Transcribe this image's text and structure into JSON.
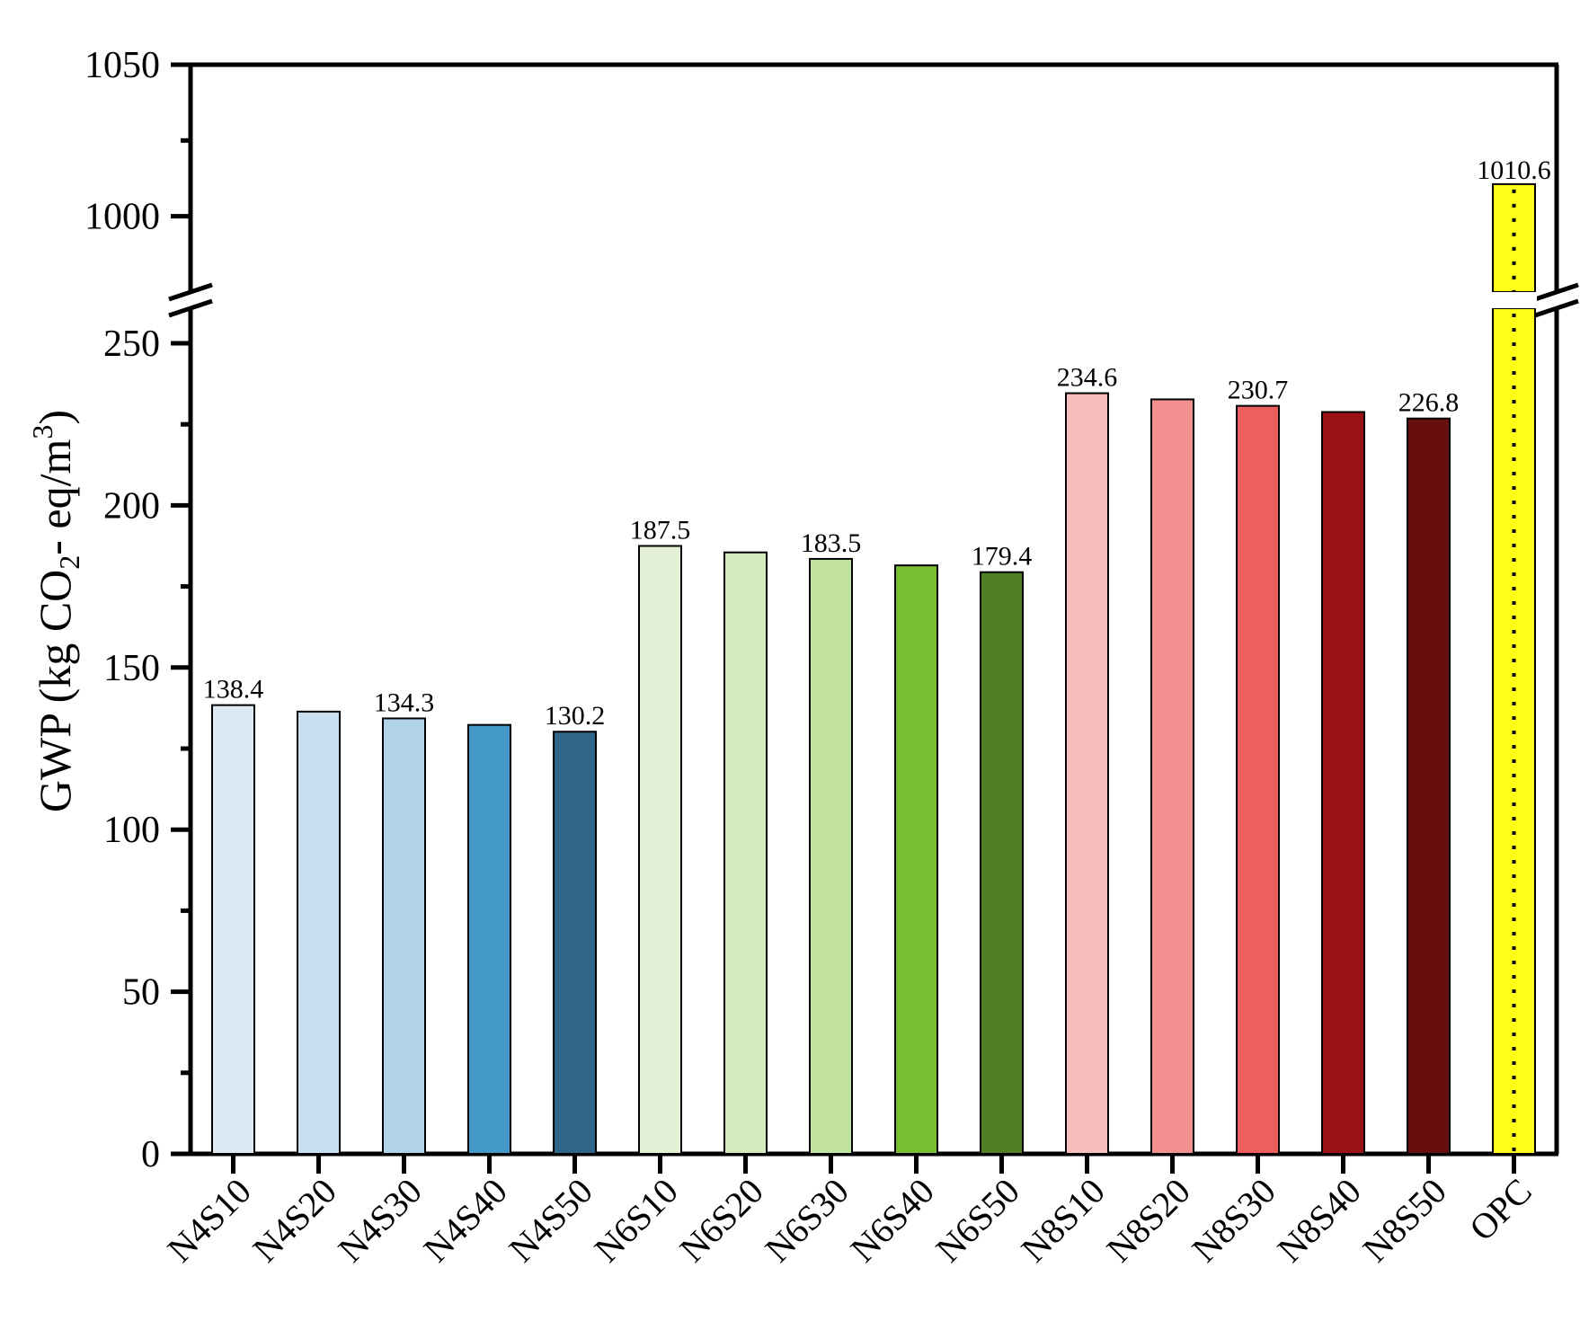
{
  "chart_data": {
    "type": "bar",
    "ylabel_main": "GWP (kg CO",
    "ylabel_sub": "2",
    "ylabel_mid": "- eq/m",
    "ylabel_sup": "3",
    "ylabel_end": ")",
    "axis_break": {
      "lower_range": [
        0,
        260
      ],
      "upper_range": [
        975,
        1050
      ]
    },
    "lower_ticks": [
      0,
      50,
      100,
      150,
      200,
      250
    ],
    "upper_ticks": [
      1000,
      1050
    ],
    "categories": [
      "N4S10",
      "N4S20",
      "N4S30",
      "N4S40",
      "N4S50",
      "N6S10",
      "N6S20",
      "N6S30",
      "N6S40",
      "N6S50",
      "N8S10",
      "N8S20",
      "N8S30",
      "N8S40",
      "N8S50",
      "OPC"
    ],
    "values": [
      138.4,
      136.4,
      134.3,
      132.3,
      130.2,
      187.5,
      185.5,
      183.5,
      181.5,
      179.4,
      234.6,
      232.7,
      230.7,
      228.8,
      226.8,
      1010.6
    ],
    "data_labels": [
      "138.4",
      "",
      "134.3",
      "",
      "130.2",
      "187.5",
      "",
      "183.5",
      "",
      "179.4",
      "234.6",
      "",
      "230.7",
      "",
      "226.8",
      "1010.6"
    ],
    "colors": [
      "#dbeaf3",
      "#c8dff0",
      "#b1d3e8",
      "#4499c8",
      "#2e6588",
      "#e3f0d6",
      "#d3eabc",
      "#c1e29f",
      "#79bd33",
      "#517f24",
      "#f8bdbd",
      "#f28f8f",
      "#ed5f5f",
      "#9a1215",
      "#660f0e",
      "#ffff1a"
    ],
    "opc_pattern": "dotted",
    "grid": false,
    "legend": "none"
  }
}
